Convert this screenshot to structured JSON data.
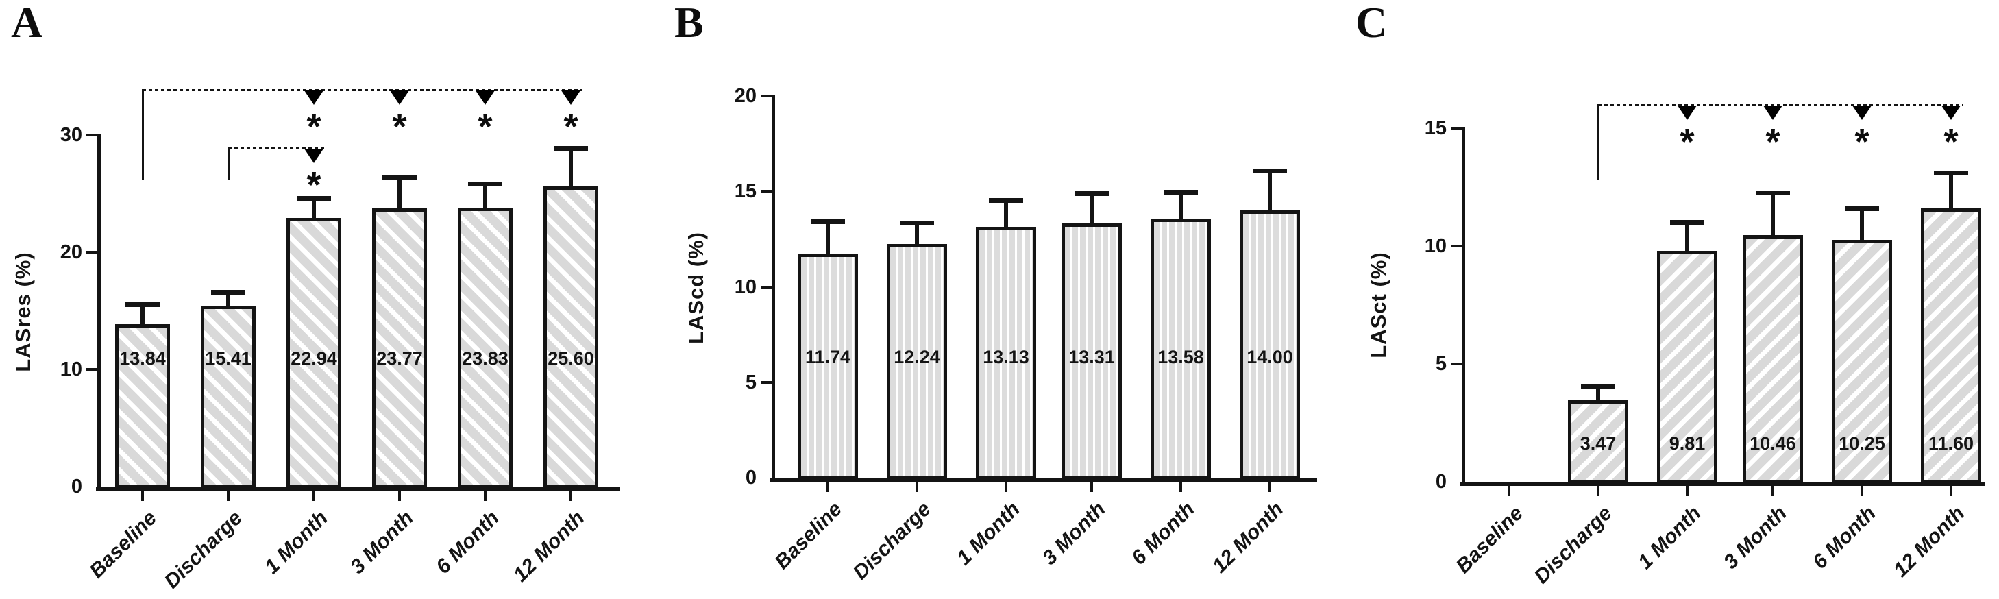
{
  "page": {
    "background_color": "#ffffff",
    "axis_color": "#141414",
    "text_color": "#141414",
    "bar_fill_color": "#d9d9d9",
    "bar_stripe_color": "#ffffff",
    "bar_border_color": "#141414",
    "significance_marker_color": "#000000"
  },
  "chart_data": [
    {
      "type": "bar",
      "panel_label": "A",
      "title": "",
      "xlabel": "",
      "ylabel": "LASres (%)",
      "categories": [
        "Baseline",
        "Discharge",
        "1 Month",
        "3 Month",
        "6 Month",
        "12 Month"
      ],
      "values": [
        13.84,
        15.41,
        22.94,
        23.77,
        23.83,
        25.6
      ],
      "bar_value_labels": [
        "13.84",
        "15.41",
        "22.94",
        "23.77",
        "23.83",
        "25.60"
      ],
      "errors_up": [
        1.7,
        1.2,
        1.7,
        2.6,
        2.0,
        3.3
      ],
      "yticks": [
        0,
        10,
        20,
        30
      ],
      "ylim": [
        0,
        30
      ],
      "grid": false,
      "legend": null,
      "hatch": "diagonal-down",
      "significance_brackets": [
        {
          "reference": "Baseline",
          "targets": [
            "1 Month",
            "3 Month",
            "6 Month",
            "12 Month"
          ],
          "symbol": "*",
          "marker": "filled-down-triangle",
          "line_style": "dashed"
        },
        {
          "reference": "Discharge",
          "targets": [
            "1 Month"
          ],
          "symbol": "*",
          "marker": "filled-down-triangle",
          "line_style": "dashed"
        }
      ]
    },
    {
      "type": "bar",
      "panel_label": "B",
      "title": "",
      "xlabel": "",
      "ylabel": "LAScd (%)",
      "categories": [
        "Baseline",
        "Discharge",
        "1 Month",
        "3 Month",
        "6 Month",
        "12 Month"
      ],
      "values": [
        11.74,
        12.24,
        13.13,
        13.31,
        13.58,
        14.0
      ],
      "bar_value_labels": [
        "11.74",
        "12.24",
        "13.13",
        "13.31",
        "13.58",
        "14.00"
      ],
      "errors_up": [
        1.7,
        1.1,
        1.4,
        1.6,
        1.4,
        2.1
      ],
      "yticks": [
        0,
        5,
        10,
        15,
        20
      ],
      "ylim": [
        0,
        20
      ],
      "grid": false,
      "legend": null,
      "hatch": "vertical",
      "significance_brackets": []
    },
    {
      "type": "bar",
      "panel_label": "C",
      "title": "",
      "xlabel": "",
      "ylabel": "LASct (%)",
      "categories": [
        "Baseline",
        "Discharge",
        "1 Month",
        "3 Month",
        "6 Month",
        "12 Month"
      ],
      "values": [
        0,
        3.47,
        9.81,
        10.46,
        10.25,
        11.6
      ],
      "bar_value_labels": [
        "",
        "3.47",
        "9.81",
        "10.46",
        "10.25",
        "11.60"
      ],
      "errors_up": [
        0,
        0.6,
        1.2,
        1.8,
        1.35,
        1.5
      ],
      "yticks": [
        0,
        5,
        10,
        15
      ],
      "ylim": [
        0,
        15
      ],
      "grid": false,
      "legend": null,
      "hatch": "diagonal-up",
      "significance_brackets": [
        {
          "reference": "Discharge",
          "targets": [
            "1 Month",
            "3 Month",
            "6 Month",
            "12 Month"
          ],
          "symbol": "*",
          "marker": "filled-down-triangle",
          "line_style": "dashed"
        }
      ]
    }
  ]
}
